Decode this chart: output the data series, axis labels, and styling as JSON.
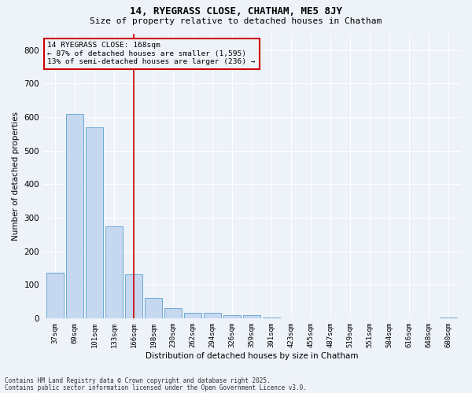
{
  "title1": "14, RYEGRASS CLOSE, CHATHAM, ME5 8JY",
  "title2": "Size of property relative to detached houses in Chatham",
  "xlabel": "Distribution of detached houses by size in Chatham",
  "ylabel": "Number of detached properties",
  "categories": [
    "37sqm",
    "69sqm",
    "101sqm",
    "133sqm",
    "166sqm",
    "198sqm",
    "230sqm",
    "262sqm",
    "294sqm",
    "326sqm",
    "359sqm",
    "391sqm",
    "423sqm",
    "455sqm",
    "487sqm",
    "519sqm",
    "551sqm",
    "584sqm",
    "616sqm",
    "648sqm",
    "680sqm"
  ],
  "values": [
    135,
    610,
    570,
    275,
    130,
    60,
    30,
    17,
    17,
    8,
    8,
    2,
    0,
    0,
    0,
    0,
    0,
    0,
    0,
    0,
    2
  ],
  "bar_color": "#c5d8f0",
  "bar_edge_color": "#6aaad4",
  "highlight_index": 4,
  "red_line_color": "#cc0000",
  "ylim": [
    0,
    850
  ],
  "yticks": [
    0,
    100,
    200,
    300,
    400,
    500,
    600,
    700,
    800
  ],
  "annotation_title": "14 RYEGRASS CLOSE: 168sqm",
  "annotation_line1": "← 87% of detached houses are smaller (1,595)",
  "annotation_line2": "13% of semi-detached houses are larger (236) →",
  "annotation_box_color": "#cc0000",
  "background_color": "#eef2f9",
  "grid_color": "#ffffff",
  "footer1": "Contains HM Land Registry data © Crown copyright and database right 2025.",
  "footer2": "Contains public sector information licensed under the Open Government Licence v3.0."
}
